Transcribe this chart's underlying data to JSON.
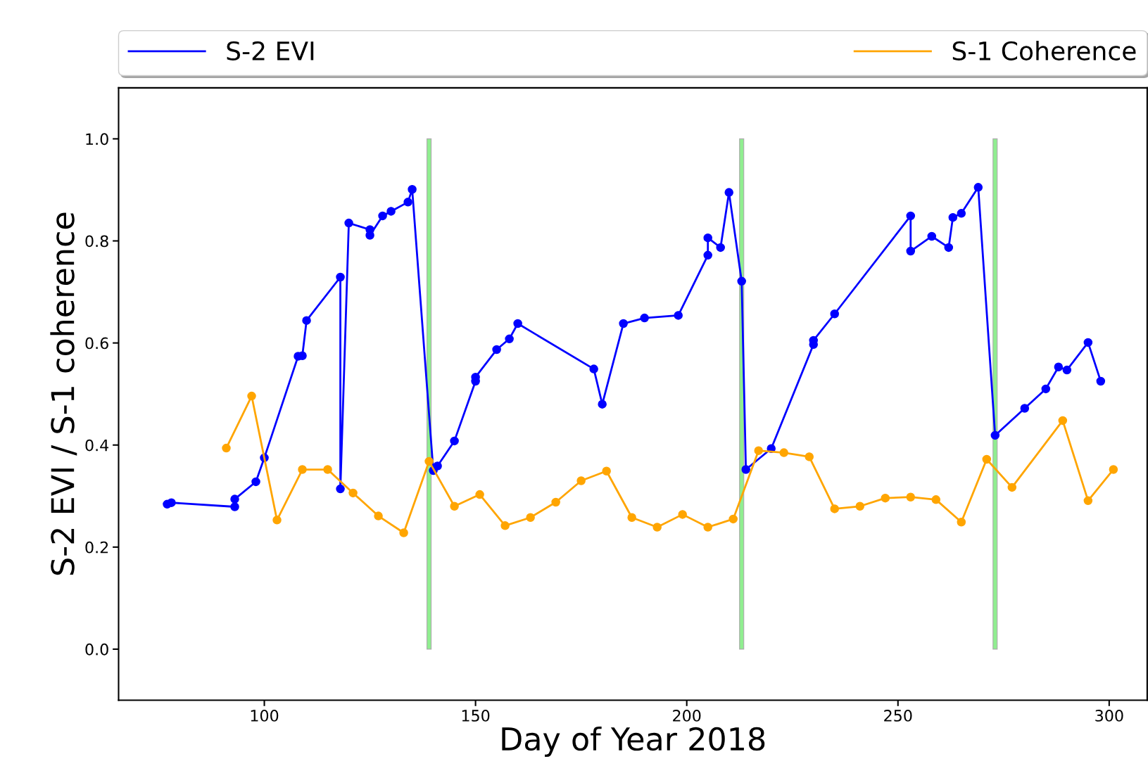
{
  "chart_data": {
    "type": "line",
    "xlabel": "Day of Year 2018",
    "ylabel": "S-2 EVI / S-1 coherence",
    "series": [
      {
        "name": "S-2 EVI",
        "color": "#0000ff",
        "x": [
          77,
          78,
          93,
          93,
          98,
          100,
          108,
          109,
          110,
          118,
          118,
          120,
          125,
          125,
          128,
          130,
          134,
          135,
          140,
          141,
          145,
          150,
          150,
          155,
          158,
          160,
          178,
          180,
          185,
          190,
          198,
          205,
          205,
          208,
          210,
          213,
          214,
          220,
          230,
          230,
          235,
          253,
          253,
          258,
          262,
          263,
          265,
          269,
          273,
          280,
          285,
          288,
          290,
          295,
          298
        ],
        "values": [
          0.284,
          0.287,
          0.279,
          0.294,
          0.328,
          0.375,
          0.574,
          0.575,
          0.644,
          0.729,
          0.314,
          0.835,
          0.822,
          0.811,
          0.849,
          0.858,
          0.876,
          0.901,
          0.35,
          0.359,
          0.408,
          0.525,
          0.533,
          0.587,
          0.608,
          0.638,
          0.549,
          0.48,
          0.638,
          0.649,
          0.654,
          0.772,
          0.806,
          0.787,
          0.895,
          0.721,
          0.352,
          0.393,
          0.597,
          0.605,
          0.657,
          0.849,
          0.78,
          0.809,
          0.787,
          0.846,
          0.854,
          0.905,
          0.419,
          0.472,
          0.51,
          0.553,
          0.547,
          0.601,
          0.525
        ]
      },
      {
        "name": "S-1 Coherence",
        "color": "#ffa500",
        "x": [
          91,
          97,
          103,
          109,
          115,
          121,
          127,
          133,
          139,
          145,
          151,
          157,
          163,
          169,
          175,
          181,
          187,
          193,
          199,
          205,
          211,
          217,
          223,
          229,
          235,
          241,
          247,
          253,
          259,
          265,
          271,
          277,
          289,
          295,
          301
        ],
        "values": [
          0.394,
          0.496,
          0.253,
          0.352,
          0.352,
          0.306,
          0.261,
          0.228,
          0.368,
          0.28,
          0.303,
          0.242,
          0.258,
          0.288,
          0.33,
          0.349,
          0.258,
          0.239,
          0.264,
          0.239,
          0.255,
          0.389,
          0.385,
          0.377,
          0.275,
          0.28,
          0.296,
          0.298,
          0.293,
          0.249,
          0.372,
          0.317,
          0.448,
          0.291,
          0.352
        ]
      }
    ],
    "bands": [
      {
        "axis": "x",
        "from": 138.5,
        "to": 139.5,
        "color": "#90ee90"
      },
      {
        "axis": "x",
        "from": 212.5,
        "to": 213.5,
        "color": "#90ee90"
      },
      {
        "axis": "x",
        "from": 272.5,
        "to": 273.5,
        "color": "#90ee90"
      }
    ],
    "xlim": [
      65.5,
      309
    ],
    "ylim": [
      -0.1,
      1.1
    ],
    "xticks": [
      100,
      150,
      200,
      250,
      300
    ],
    "yticks": [
      {
        "value": 0,
        "label": "0.0"
      },
      {
        "value": 0.2,
        "label": "0.2"
      },
      {
        "value": 0.4,
        "label": "0.4"
      },
      {
        "value": 0.6,
        "label": "0.6"
      },
      {
        "value": 0.8,
        "label": "0.8"
      },
      {
        "value": 1.0,
        "label": "1.0"
      }
    ],
    "marker": "circle",
    "line_style": "solid",
    "legend": "top",
    "grid": false
  }
}
